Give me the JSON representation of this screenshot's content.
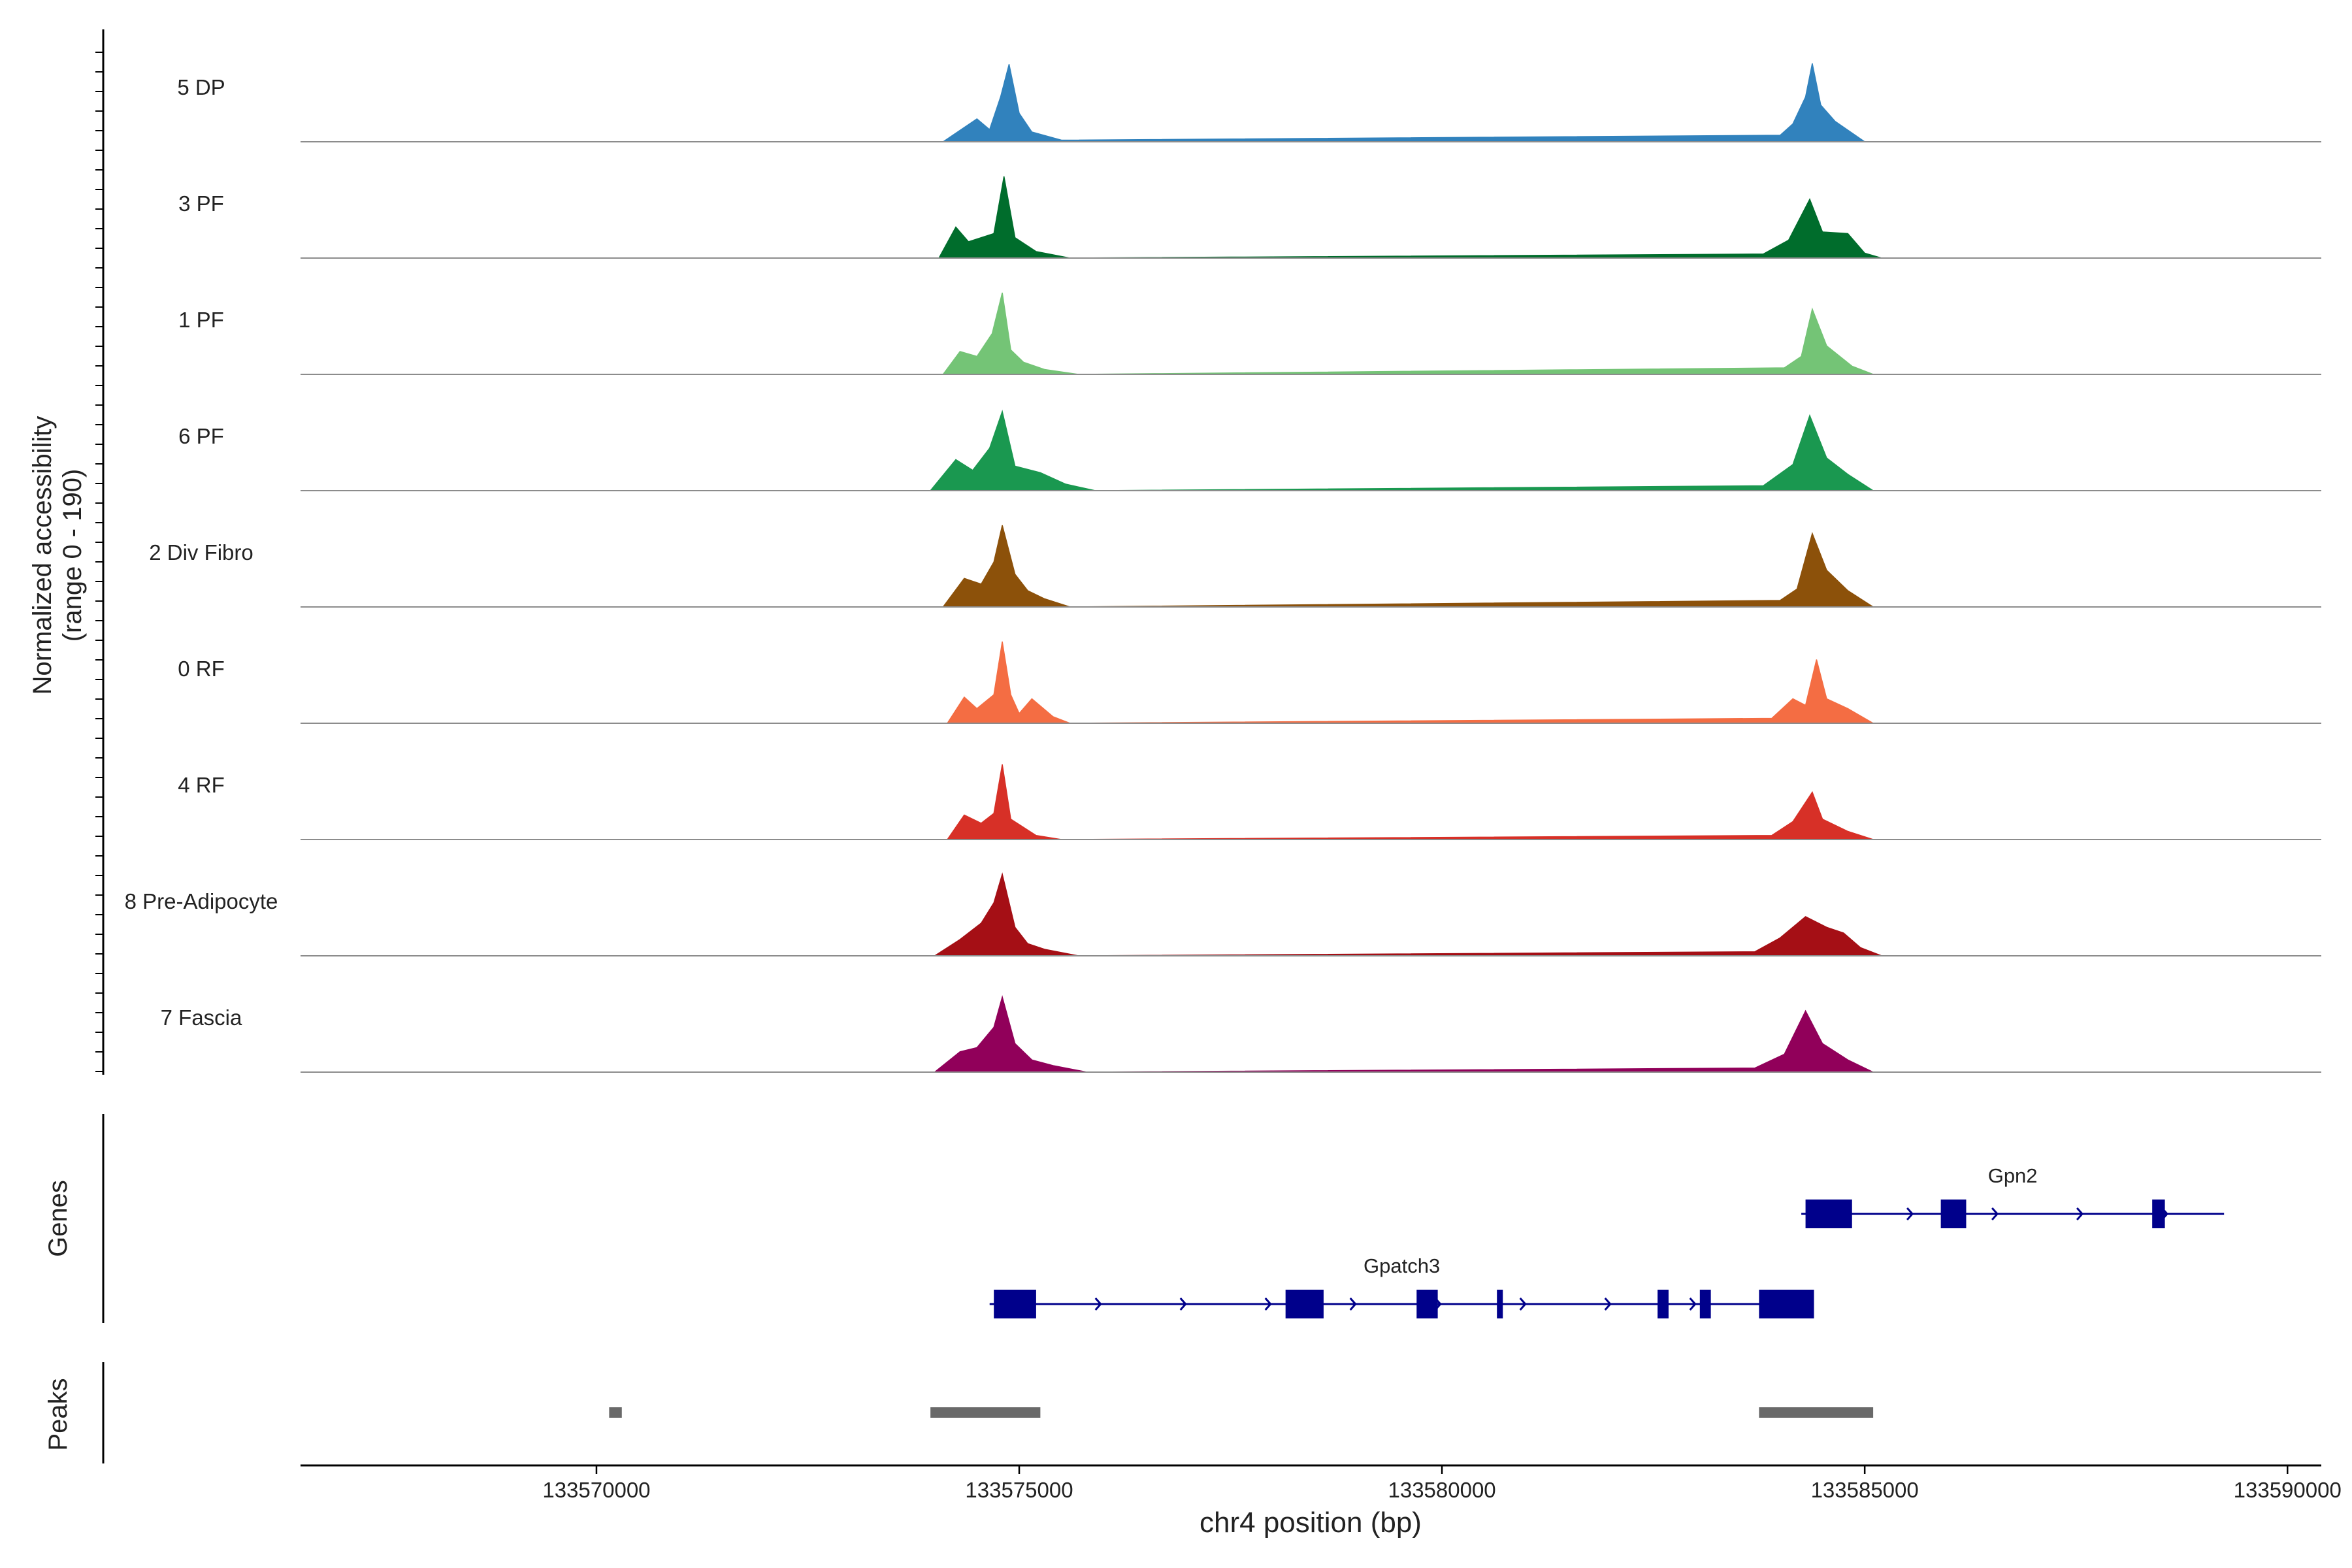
{
  "chart_data": {
    "type": "coverage-track",
    "y_axis_label_line1": "Normalized accessibility",
    "y_axis_label_line2": "(range 0 - 190)",
    "y_range": [
      0,
      190
    ],
    "x_axis_label": "chr4 position (bp)",
    "x_range": [
      133566500,
      133590400
    ],
    "x_ticks": [
      "133570000",
      "133575000",
      "133580000",
      "133585000",
      "133590000"
    ],
    "tracks": [
      {
        "name": "5 DP",
        "color": "#3182BD",
        "profile": [
          [
            133574100,
            0
          ],
          [
            133574500,
            0.28
          ],
          [
            133574650,
            0.15
          ],
          [
            133574780,
            0.55
          ],
          [
            133574880,
            0.95
          ],
          [
            133575000,
            0.35
          ],
          [
            133575150,
            0.12
          ],
          [
            133575500,
            0.02
          ],
          [
            133584000,
            0.08
          ],
          [
            133584150,
            0.22
          ],
          [
            133584300,
            0.55
          ],
          [
            133584380,
            0.96
          ],
          [
            133584480,
            0.45
          ],
          [
            133584650,
            0.25
          ],
          [
            133585000,
            0
          ]
        ]
      },
      {
        "name": "3 PF",
        "color": "#006D2C",
        "profile": [
          [
            133574050,
            0
          ],
          [
            133574250,
            0.38
          ],
          [
            133574400,
            0.2
          ],
          [
            133574700,
            0.3
          ],
          [
            133574820,
            1.0
          ],
          [
            133574950,
            0.25
          ],
          [
            133575200,
            0.08
          ],
          [
            133575600,
            0
          ],
          [
            133583800,
            0.05
          ],
          [
            133584100,
            0.22
          ],
          [
            133584350,
            0.72
          ],
          [
            133584500,
            0.32
          ],
          [
            133584800,
            0.3
          ],
          [
            133585000,
            0.06
          ],
          [
            133585200,
            0
          ]
        ]
      },
      {
        "name": "1 PF",
        "color": "#74C476",
        "profile": [
          [
            133574100,
            0
          ],
          [
            133574300,
            0.28
          ],
          [
            133574500,
            0.22
          ],
          [
            133574680,
            0.5
          ],
          [
            133574800,
            1.0
          ],
          [
            133574900,
            0.3
          ],
          [
            133575050,
            0.15
          ],
          [
            133575300,
            0.06
          ],
          [
            133575700,
            0
          ],
          [
            133584050,
            0.08
          ],
          [
            133584250,
            0.22
          ],
          [
            133584380,
            0.8
          ],
          [
            133584550,
            0.35
          ],
          [
            133584850,
            0.1
          ],
          [
            133585100,
            0
          ]
        ]
      },
      {
        "name": "6 PF",
        "color": "#1A9850",
        "profile": [
          [
            133573950,
            0
          ],
          [
            133574250,
            0.38
          ],
          [
            133574450,
            0.25
          ],
          [
            133574650,
            0.52
          ],
          [
            133574800,
            0.97
          ],
          [
            133574950,
            0.3
          ],
          [
            133575250,
            0.22
          ],
          [
            133575550,
            0.08
          ],
          [
            133575900,
            0
          ],
          [
            133583800,
            0.06
          ],
          [
            133584150,
            0.32
          ],
          [
            133584350,
            0.92
          ],
          [
            133584550,
            0.4
          ],
          [
            133584800,
            0.2
          ],
          [
            133585100,
            0
          ]
        ]
      },
      {
        "name": "2 Div Fibro",
        "color": "#8C510A",
        "profile": [
          [
            133574100,
            0
          ],
          [
            133574350,
            0.35
          ],
          [
            133574550,
            0.28
          ],
          [
            133574700,
            0.55
          ],
          [
            133574800,
            1.0
          ],
          [
            133574950,
            0.4
          ],
          [
            133575100,
            0.2
          ],
          [
            133575300,
            0.1
          ],
          [
            133575600,
            0
          ],
          [
            133584000,
            0.08
          ],
          [
            133584200,
            0.22
          ],
          [
            133584380,
            0.9
          ],
          [
            133584550,
            0.45
          ],
          [
            133584800,
            0.2
          ],
          [
            133585100,
            0
          ]
        ]
      },
      {
        "name": "0 RF",
        "color": "#F46D43",
        "profile": [
          [
            133574150,
            0
          ],
          [
            133574350,
            0.32
          ],
          [
            133574500,
            0.18
          ],
          [
            133574700,
            0.35
          ],
          [
            133574800,
            1.0
          ],
          [
            133574900,
            0.35
          ],
          [
            133575000,
            0.12
          ],
          [
            133575150,
            0.3
          ],
          [
            133575400,
            0.08
          ],
          [
            133575600,
            0
          ],
          [
            133583900,
            0.06
          ],
          [
            133584150,
            0.3
          ],
          [
            133584300,
            0.22
          ],
          [
            133584430,
            0.78
          ],
          [
            133584550,
            0.3
          ],
          [
            133584800,
            0.18
          ],
          [
            133585100,
            0
          ]
        ]
      },
      {
        "name": "4 RF",
        "color": "#D73027",
        "profile": [
          [
            133574150,
            0
          ],
          [
            133574350,
            0.3
          ],
          [
            133574550,
            0.2
          ],
          [
            133574700,
            0.32
          ],
          [
            133574800,
            0.92
          ],
          [
            133574900,
            0.25
          ],
          [
            133575050,
            0.15
          ],
          [
            133575200,
            0.05
          ],
          [
            133575500,
            0
          ],
          [
            133583900,
            0.05
          ],
          [
            133584150,
            0.22
          ],
          [
            133584380,
            0.58
          ],
          [
            133584500,
            0.25
          ],
          [
            133584800,
            0.1
          ],
          [
            133585100,
            0
          ]
        ]
      },
      {
        "name": "8 Pre-Adipocyte",
        "color": "#A50F15",
        "profile": [
          [
            133574000,
            0
          ],
          [
            133574300,
            0.2
          ],
          [
            133574550,
            0.4
          ],
          [
            133574700,
            0.65
          ],
          [
            133574800,
            1.0
          ],
          [
            133574950,
            0.35
          ],
          [
            133575100,
            0.15
          ],
          [
            133575300,
            0.08
          ],
          [
            133575700,
            0
          ],
          [
            133583700,
            0.05
          ],
          [
            133584000,
            0.22
          ],
          [
            133584300,
            0.48
          ],
          [
            133584550,
            0.35
          ],
          [
            133584750,
            0.28
          ],
          [
            133584950,
            0.1
          ],
          [
            133585200,
            0
          ]
        ]
      },
      {
        "name": "7 Fascia",
        "color": "#91005A",
        "profile": [
          [
            133574000,
            0
          ],
          [
            133574300,
            0.25
          ],
          [
            133574500,
            0.3
          ],
          [
            133574700,
            0.55
          ],
          [
            133574800,
            0.92
          ],
          [
            133574950,
            0.35
          ],
          [
            133575150,
            0.15
          ],
          [
            133575400,
            0.08
          ],
          [
            133575800,
            0
          ],
          [
            133583700,
            0.05
          ],
          [
            133584050,
            0.22
          ],
          [
            133584300,
            0.75
          ],
          [
            133584500,
            0.35
          ],
          [
            133584800,
            0.15
          ],
          [
            133585100,
            0
          ]
        ]
      }
    ],
    "genes_track_label": "Genes",
    "genes": [
      {
        "name": "Gpn2",
        "color": "#00008B",
        "start": 133584250,
        "end": 133589250,
        "exons": [
          [
            133584300,
            133584850
          ],
          [
            133585900,
            133586200
          ],
          [
            133588400,
            133588550
          ]
        ]
      },
      {
        "name": "Gpatch3",
        "color": "#00008B",
        "start": 133574650,
        "end": 133584400,
        "exons": [
          [
            133574700,
            133575200
          ],
          [
            133578150,
            133578600
          ],
          [
            133579700,
            133579950
          ],
          [
            133580650,
            133580720
          ],
          [
            133582550,
            133582680
          ],
          [
            133583050,
            133583180
          ],
          [
            133583750,
            133584400
          ]
        ]
      }
    ],
    "peaks_track_label": "Peaks",
    "peak_color": "#696969",
    "peaks": [
      [
        133570150,
        133570300
      ],
      [
        133573950,
        133575250
      ],
      [
        133583750,
        133585100
      ]
    ]
  }
}
